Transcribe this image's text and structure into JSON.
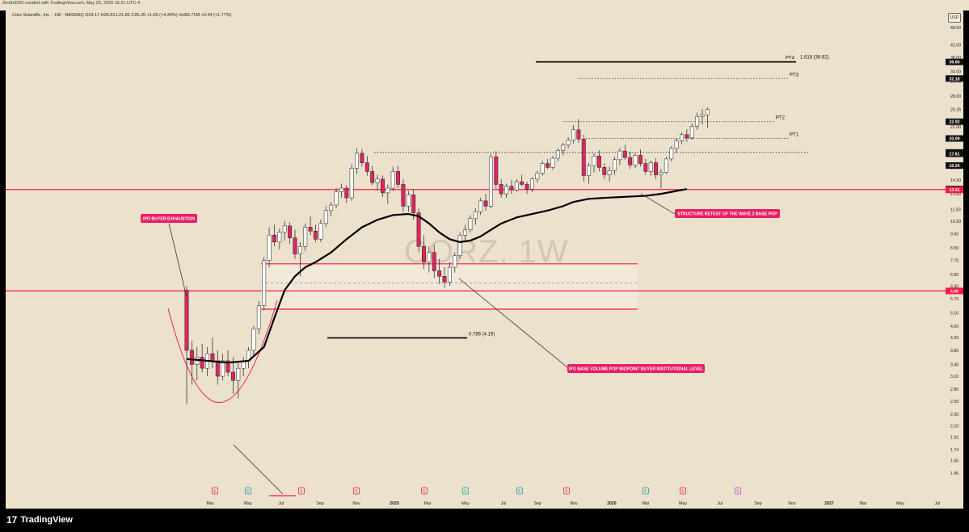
{
  "header": {
    "attribution": "Zeoth3200 created with TradingView.com, May 25, 2026 16:21 UTC-4",
    "symbol_line": "Core Scientific, Inc. · 1W · NASDAQ  O24.17  H25.63  L21.82  C25.26  +1.05 (+4.34%)  Vol55.71M  +0.44 (+1.77%)",
    "currency": "USD"
  },
  "watermark": "CORZ, 1W",
  "footer": {
    "brand": "TradingView",
    "logo_glyph": "17"
  },
  "colors": {
    "background": "#ebe1cc",
    "bull_candle": "#ffffff",
    "bear_candle": "#e0245e",
    "sma_line": "#000000",
    "red_level": "#ff1744",
    "callout": "#e91e63",
    "zone_fill": "#f3e9d9"
  },
  "chart_data": {
    "type": "candlestick",
    "timeframe": "1W",
    "y_scale": "log",
    "ylim": [
      1.3,
      49
    ],
    "y_ticks": [
      "48.00",
      "42.00",
      "38.00",
      "34.00",
      "31.50",
      "28.00",
      "25.26",
      "22.00",
      "18.00",
      "16.00",
      "14.50",
      "13.00",
      "11.50",
      "10.50",
      "9.50",
      "8.50",
      "7.70",
      "6.90",
      "6.30",
      "5.70",
      "5.10",
      "4.60",
      "4.20",
      "3.80",
      "3.40",
      "3.10",
      "2.80",
      "2.55",
      "2.30",
      "2.10",
      "1.92",
      "1.74",
      "1.60",
      "1.45"
    ],
    "x_ticks": [
      "Mar",
      "May",
      "Jul",
      "Sep",
      "Nov",
      "2025",
      "Mar",
      "May",
      "Jul",
      "Sep",
      "Nov",
      "2026",
      "Mar",
      "May",
      "Jul",
      "Sep",
      "Nov",
      "2027",
      "Mar",
      "May",
      "Jul"
    ],
    "price_badges": [
      {
        "value": "36.66",
        "style": "black"
      },
      {
        "value": "32.18",
        "style": "black"
      },
      {
        "value": "22.92",
        "style": "black"
      },
      {
        "value": "20.09",
        "style": "black"
      },
      {
        "value": "18.00",
        "style": "black"
      },
      {
        "value": "17.81",
        "style": "black"
      },
      {
        "value": "16.24",
        "style": "black"
      },
      {
        "value": "13.50",
        "style": "black"
      },
      {
        "value": "13.41",
        "style": "red"
      },
      {
        "value": "6.06",
        "style": "red"
      }
    ],
    "horizontal_levels": [
      {
        "value": 13.45,
        "style": "solid-red",
        "label": ""
      },
      {
        "value": 6.06,
        "style": "solid-red",
        "label": ""
      },
      {
        "value": 7.5,
        "style": "solid-red-zone-top",
        "label": ""
      },
      {
        "value": 5.25,
        "style": "solid-red-zone-bottom",
        "label": ""
      },
      {
        "value": 6.45,
        "style": "dashed-gray",
        "label": ""
      },
      {
        "value": 36.66,
        "style": "solid-black",
        "label": "PT4"
      },
      {
        "value": 32.18,
        "style": "dotted",
        "label": "PT3"
      },
      {
        "value": 22.92,
        "style": "dotted",
        "label": "PT2"
      },
      {
        "value": 20.09,
        "style": "dotted",
        "label": "PT1"
      },
      {
        "value": 18.0,
        "style": "dotted",
        "label": ""
      },
      {
        "value": 4.19,
        "style": "solid-black",
        "label": "0.786 (4.19)"
      }
    ],
    "fib_label": "1.618 (36.62)",
    "annotations": [
      "IPO BUYER EXHAUSTION",
      "STRUCTURE RETEST OF THE WAVE 2 BASE POP",
      "IPO BASE VOLUME POP MIDPOINT BUYER INSTITUTIONAL LEVEL"
    ],
    "earnings_markers": [
      "E",
      "E",
      "E",
      "E",
      "E",
      "E",
      "E",
      "E",
      "E",
      "E",
      "E",
      "E"
    ],
    "ohlc": [
      [
        6.1,
        6.3,
        2.5,
        3.8
      ],
      [
        3.8,
        4.1,
        2.9,
        3.4
      ],
      [
        3.4,
        3.9,
        3.0,
        3.6
      ],
      [
        3.6,
        4.0,
        3.2,
        3.3
      ],
      [
        3.3,
        3.9,
        3.1,
        3.7
      ],
      [
        3.7,
        4.2,
        3.3,
        3.5
      ],
      [
        3.5,
        3.8,
        2.9,
        3.1
      ],
      [
        3.1,
        3.7,
        3.0,
        3.5
      ],
      [
        3.5,
        3.8,
        3.1,
        3.2
      ],
      [
        3.2,
        3.6,
        2.7,
        3.0
      ],
      [
        3.0,
        3.5,
        2.6,
        3.3
      ],
      [
        3.3,
        3.6,
        3.1,
        3.5
      ],
      [
        3.5,
        3.9,
        3.3,
        3.8
      ],
      [
        3.8,
        4.6,
        3.6,
        4.5
      ],
      [
        4.5,
        5.6,
        4.3,
        5.4
      ],
      [
        5.4,
        7.9,
        5.2,
        7.7
      ],
      [
        7.7,
        10.0,
        7.3,
        9.4
      ],
      [
        9.4,
        10.2,
        8.6,
        8.9
      ],
      [
        8.9,
        9.9,
        8.4,
        9.6
      ],
      [
        9.6,
        10.5,
        9.0,
        10.1
      ],
      [
        10.1,
        10.4,
        8.8,
        9.2
      ],
      [
        9.2,
        9.8,
        7.8,
        8.1
      ],
      [
        8.1,
        8.9,
        6.8,
        8.6
      ],
      [
        8.6,
        10.3,
        8.3,
        10.0
      ],
      [
        10.0,
        10.9,
        9.4,
        9.7
      ],
      [
        9.7,
        10.2,
        8.9,
        9.1
      ],
      [
        9.1,
        10.6,
        8.9,
        10.3
      ],
      [
        10.3,
        11.8,
        10.0,
        11.4
      ],
      [
        11.4,
        12.2,
        10.9,
        11.9
      ],
      [
        11.9,
        13.6,
        11.6,
        13.2
      ],
      [
        13.2,
        14.1,
        12.6,
        13.6
      ],
      [
        13.6,
        13.9,
        12.1,
        12.6
      ],
      [
        12.6,
        16.4,
        12.3,
        15.9
      ],
      [
        15.9,
        18.6,
        15.2,
        17.9
      ],
      [
        17.9,
        18.5,
        16.1,
        16.6
      ],
      [
        16.6,
        17.5,
        15.0,
        15.5
      ],
      [
        15.5,
        16.2,
        13.9,
        14.2
      ],
      [
        14.2,
        15.1,
        13.4,
        14.6
      ],
      [
        14.6,
        15.0,
        12.7,
        13.1
      ],
      [
        13.1,
        14.0,
        12.0,
        13.6
      ],
      [
        13.6,
        16.1,
        13.3,
        15.5
      ],
      [
        15.5,
        16.2,
        13.6,
        14.0
      ],
      [
        14.0,
        14.6,
        11.3,
        11.8
      ],
      [
        11.8,
        13.3,
        11.3,
        12.9
      ],
      [
        12.9,
        13.5,
        10.6,
        11.2
      ],
      [
        11.2,
        11.6,
        8.2,
        8.6
      ],
      [
        8.6,
        9.4,
        7.2,
        7.6
      ],
      [
        7.6,
        8.6,
        7.0,
        8.2
      ],
      [
        8.2,
        8.7,
        6.7,
        7.1
      ],
      [
        7.1,
        7.8,
        6.4,
        6.8
      ],
      [
        6.8,
        7.3,
        6.2,
        6.5
      ],
      [
        6.5,
        7.6,
        6.3,
        7.3
      ],
      [
        7.3,
        8.2,
        7.0,
        8.0
      ],
      [
        8.0,
        9.6,
        7.8,
        9.4
      ],
      [
        9.4,
        10.2,
        9.0,
        9.8
      ],
      [
        9.8,
        11.0,
        9.6,
        10.7
      ],
      [
        10.7,
        11.6,
        10.2,
        11.3
      ],
      [
        11.3,
        12.6,
        11.0,
        12.3
      ],
      [
        12.3,
        13.0,
        11.4,
        11.8
      ],
      [
        11.8,
        17.8,
        11.6,
        17.4
      ],
      [
        17.4,
        18.2,
        13.6,
        14.0
      ],
      [
        14.0,
        14.6,
        12.6,
        13.0
      ],
      [
        13.0,
        14.1,
        12.6,
        13.8
      ],
      [
        13.8,
        14.5,
        13.0,
        13.4
      ],
      [
        13.4,
        14.6,
        13.2,
        14.3
      ],
      [
        14.3,
        15.1,
        13.8,
        14.0
      ],
      [
        14.0,
        14.3,
        13.0,
        13.5
      ],
      [
        13.5,
        14.8,
        13.2,
        14.6
      ],
      [
        14.6,
        15.6,
        14.2,
        15.3
      ],
      [
        15.3,
        16.8,
        15.0,
        16.5
      ],
      [
        16.5,
        17.1,
        15.8,
        16.0
      ],
      [
        16.0,
        17.5,
        15.7,
        17.2
      ],
      [
        17.2,
        18.6,
        16.8,
        18.3
      ],
      [
        18.3,
        19.4,
        17.6,
        19.1
      ],
      [
        19.1,
        20.3,
        18.6,
        19.8
      ],
      [
        19.8,
        22.3,
        19.3,
        21.5
      ],
      [
        21.5,
        23.4,
        19.4,
        20.0
      ],
      [
        20.0,
        20.7,
        14.3,
        15.0
      ],
      [
        15.0,
        16.6,
        14.1,
        16.2
      ],
      [
        16.2,
        17.9,
        15.4,
        17.5
      ],
      [
        17.5,
        18.3,
        15.5,
        16.0
      ],
      [
        16.0,
        16.5,
        14.6,
        15.1
      ],
      [
        15.1,
        16.1,
        14.3,
        15.6
      ],
      [
        15.6,
        17.4,
        15.1,
        17.0
      ],
      [
        17.0,
        18.6,
        16.3,
        18.2
      ],
      [
        18.2,
        19.1,
        17.0,
        17.3
      ],
      [
        17.3,
        18.1,
        15.8,
        16.3
      ],
      [
        16.3,
        17.9,
        15.9,
        17.6
      ],
      [
        17.6,
        18.4,
        16.1,
        16.5
      ],
      [
        16.5,
        17.1,
        15.1,
        15.5
      ],
      [
        15.5,
        16.9,
        15.0,
        16.6
      ],
      [
        16.6,
        17.2,
        14.6,
        15.1
      ],
      [
        15.1,
        15.8,
        13.6,
        15.4
      ],
      [
        15.4,
        17.4,
        15.2,
        17.1
      ],
      [
        17.1,
        18.9,
        16.8,
        18.6
      ],
      [
        18.6,
        20.1,
        18.0,
        19.7
      ],
      [
        19.7,
        21.1,
        19.2,
        20.7
      ],
      [
        20.7,
        21.6,
        19.6,
        20.2
      ],
      [
        20.2,
        22.6,
        19.9,
        22.1
      ],
      [
        22.1,
        24.6,
        21.5,
        23.9
      ],
      [
        23.9,
        25.3,
        22.4,
        24.2
      ],
      [
        24.2,
        25.63,
        21.82,
        25.26
      ]
    ],
    "sma": [
      [
        0,
        3.55
      ],
      [
        4,
        3.5
      ],
      [
        8,
        3.45
      ],
      [
        12,
        3.5
      ],
      [
        15,
        3.9
      ],
      [
        17,
        4.9
      ],
      [
        19,
        6.1
      ],
      [
        21,
        6.8
      ],
      [
        23,
        7.3
      ],
      [
        25,
        7.6
      ],
      [
        28,
        8.2
      ],
      [
        31,
        9.1
      ],
      [
        34,
        10.0
      ],
      [
        37,
        10.6
      ],
      [
        40,
        11.0
      ],
      [
        43,
        11.1
      ],
      [
        45,
        10.9
      ],
      [
        47,
        10.3
      ],
      [
        49,
        9.6
      ],
      [
        51,
        9.1
      ],
      [
        53,
        8.9
      ],
      [
        55,
        9.0
      ],
      [
        57,
        9.3
      ],
      [
        59,
        9.8
      ],
      [
        61,
        10.3
      ],
      [
        64,
        10.8
      ],
      [
        67,
        11.1
      ],
      [
        70,
        11.4
      ],
      [
        73,
        11.8
      ],
      [
        75,
        12.2
      ],
      [
        78,
        12.5
      ],
      [
        81,
        12.6
      ],
      [
        85,
        12.7
      ],
      [
        89,
        12.8
      ],
      [
        92,
        13.0
      ],
      [
        95,
        13.3
      ],
      [
        97,
        13.5
      ]
    ]
  }
}
